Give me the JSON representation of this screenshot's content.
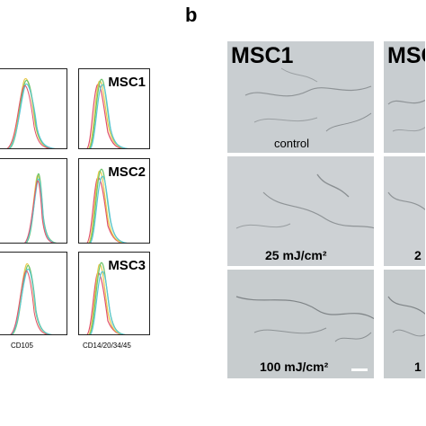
{
  "panel_b_label": "b",
  "histograms": {
    "rows": [
      {
        "sample": "MSC1"
      },
      {
        "sample": "MSC2"
      },
      {
        "sample": "MSC3"
      }
    ],
    "xlabels": [
      "CD105",
      "CD14/20/34/45"
    ]
  },
  "micrographs": {
    "columns": [
      "MSC1",
      "MSC"
    ],
    "rows": [
      {
        "condition": "control"
      },
      {
        "condition": "25 mJ/cm²",
        "partial": "2"
      },
      {
        "condition": "100 mJ/cm²",
        "partial": "1"
      }
    ]
  },
  "colors": {
    "hist_yellow": "#e6c94a",
    "hist_green": "#6cc46a",
    "hist_cyan": "#5bc7d6",
    "hist_red": "#e0506a",
    "hist_gray": "#9a9a9a",
    "micro_bg": "#cfd3d6"
  }
}
